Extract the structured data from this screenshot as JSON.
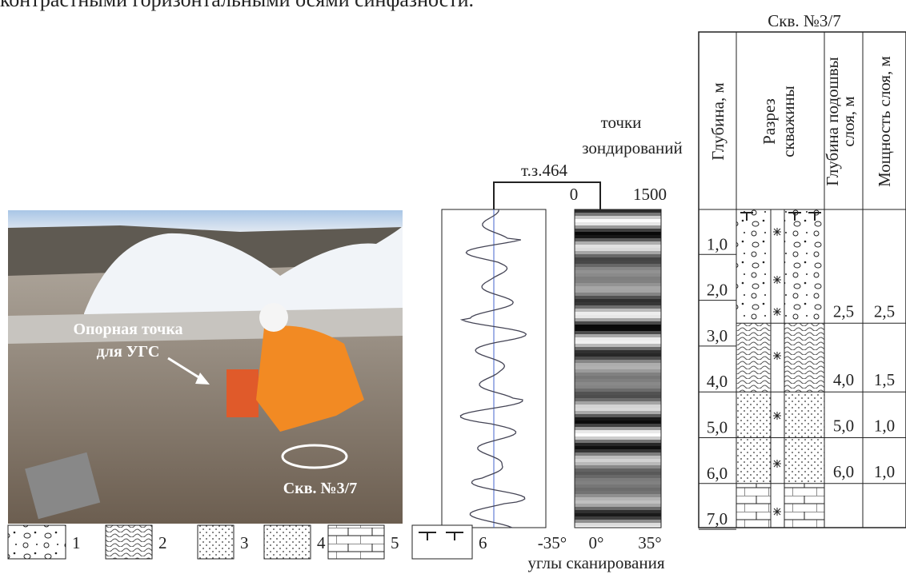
{
  "caption_fragment": "контрастными горизонтальными осями синфазности.",
  "photo": {
    "label_point": [
      "Опорная точка",
      "для УГС"
    ],
    "label_well": "Скв. №3/7"
  },
  "log": {
    "well_title": "Скв. №3/7",
    "trace_label": [
      "точки",
      "зондирований"
    ],
    "point": "т.з.464",
    "axis_top": [
      "0",
      "1500"
    ],
    "angles": [
      "-35°",
      "0°",
      "35°"
    ],
    "angles_label": "углы сканирования"
  },
  "table": {
    "headers": [
      [
        "Глубина, м"
      ],
      [
        "Разрез",
        "скважины"
      ],
      [
        "Глубина подошвы",
        "слоя, м"
      ],
      [
        "Мощность слоя, м"
      ]
    ],
    "depths": [
      "1,0",
      "2,0",
      "3,0",
      "4,0",
      "5,0",
      "6,0",
      "7,0"
    ],
    "layers": [
      {
        "bottom": "2,5",
        "thickness": "2,5"
      },
      {
        "bottom": "4,0",
        "thickness": "1,5"
      },
      {
        "bottom": "5,0",
        "thickness": "1,0"
      },
      {
        "bottom": "6,0",
        "thickness": "1,0"
      }
    ]
  },
  "legend": [
    "1",
    "2",
    "3",
    "4",
    "5",
    "6"
  ]
}
